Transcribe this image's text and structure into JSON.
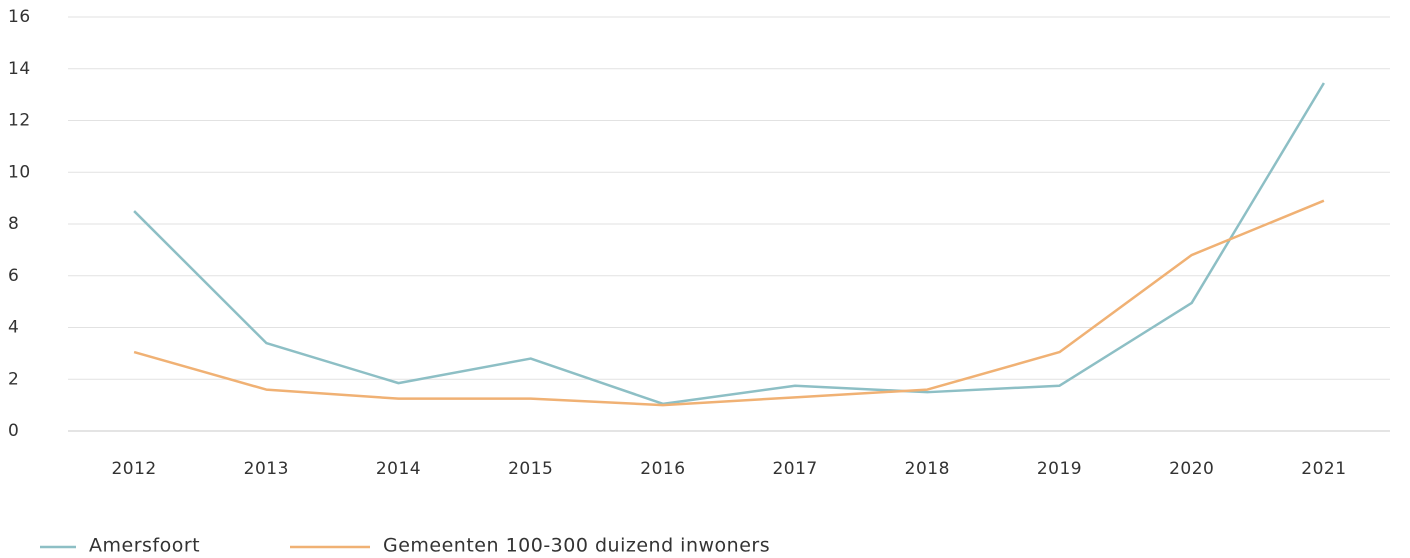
{
  "chart_data": {
    "type": "line",
    "categories": [
      "2012",
      "2013",
      "2014",
      "2015",
      "2016",
      "2017",
      "2018",
      "2019",
      "2020",
      "2021"
    ],
    "series": [
      {
        "name": "Amersfoort",
        "color": "#8dbfc5",
        "values": [
          8.5,
          3.4,
          1.85,
          2.8,
          1.05,
          1.75,
          1.5,
          1.75,
          4.95,
          13.45
        ]
      },
      {
        "name": "Gemeenten 100-300 duizend inwoners",
        "color": "#f0b174",
        "values": [
          3.05,
          1.6,
          1.25,
          1.25,
          1.0,
          1.3,
          1.6,
          3.05,
          6.8,
          8.9
        ]
      }
    ],
    "ylim": [
      0,
      16
    ],
    "yticks": [
      0,
      2,
      4,
      6,
      8,
      10,
      12,
      14,
      16
    ],
    "grid": true,
    "legend": "bottom-left"
  }
}
